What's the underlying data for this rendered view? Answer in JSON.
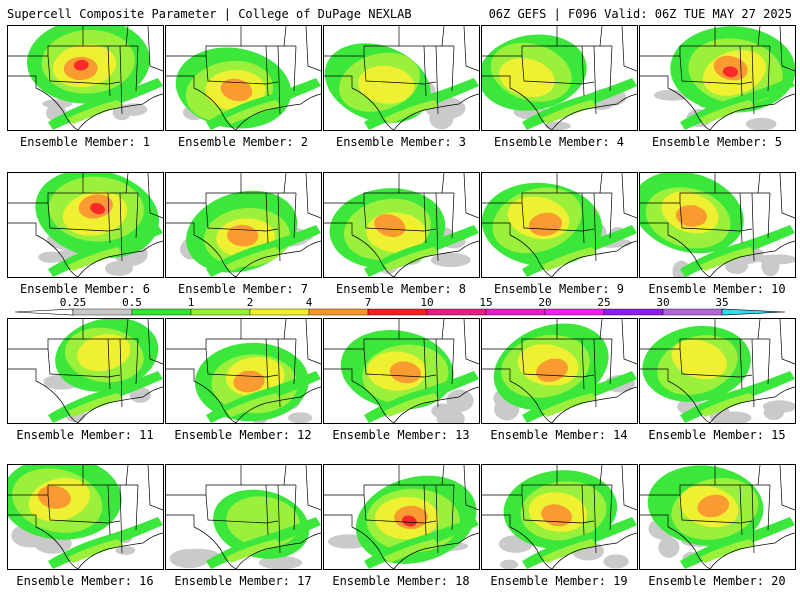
{
  "header": {
    "title": "Supercell Composite Parameter | College of DuPage NEXLAB",
    "run_info": "06Z GEFS | F096 Valid: 06Z TUE MAY 27 2025"
  },
  "legend": {
    "labels": [
      "0.25",
      "0.5",
      "1",
      "2",
      "4",
      "7",
      "10",
      "15",
      "20",
      "25",
      "30",
      "35"
    ],
    "colors": [
      "#c8c8c8",
      "#32e632",
      "#96f032",
      "#f0f028",
      "#fa9628",
      "#fa1e1e",
      "#e61e82",
      "#e61ec8",
      "#f01ef0",
      "#8c1ef0",
      "#b464dc",
      "#32dcf0"
    ]
  },
  "panels": [
    {
      "label": "Ensemble Member: 1",
      "intensity": 0.9
    },
    {
      "label": "Ensemble Member: 2",
      "intensity": 0.75
    },
    {
      "label": "Ensemble Member: 3",
      "intensity": 0.6
    },
    {
      "label": "Ensemble Member: 4",
      "intensity": 0.6
    },
    {
      "label": "Ensemble Member: 5",
      "intensity": 0.95
    },
    {
      "label": "Ensemble Member: 6",
      "intensity": 0.95
    },
    {
      "label": "Ensemble Member: 7",
      "intensity": 0.7
    },
    {
      "label": "Ensemble Member: 8",
      "intensity": 0.75
    },
    {
      "label": "Ensemble Member: 9",
      "intensity": 0.85
    },
    {
      "label": "Ensemble Member: 10",
      "intensity": 0.7
    },
    {
      "label": "Ensemble Member: 11",
      "intensity": 0.5
    },
    {
      "label": "Ensemble Member: 12",
      "intensity": 0.7
    },
    {
      "label": "Ensemble Member: 13",
      "intensity": 0.7
    },
    {
      "label": "Ensemble Member: 14",
      "intensity": 0.8
    },
    {
      "label": "Ensemble Member: 15",
      "intensity": 0.6
    },
    {
      "label": "Ensemble Member: 16",
      "intensity": 0.85
    },
    {
      "label": "Ensemble Member: 17",
      "intensity": 0.35
    },
    {
      "label": "Ensemble Member: 18",
      "intensity": 0.9
    },
    {
      "label": "Ensemble Member: 19",
      "intensity": 0.7
    },
    {
      "label": "Ensemble Member: 20",
      "intensity": 0.75
    }
  ]
}
